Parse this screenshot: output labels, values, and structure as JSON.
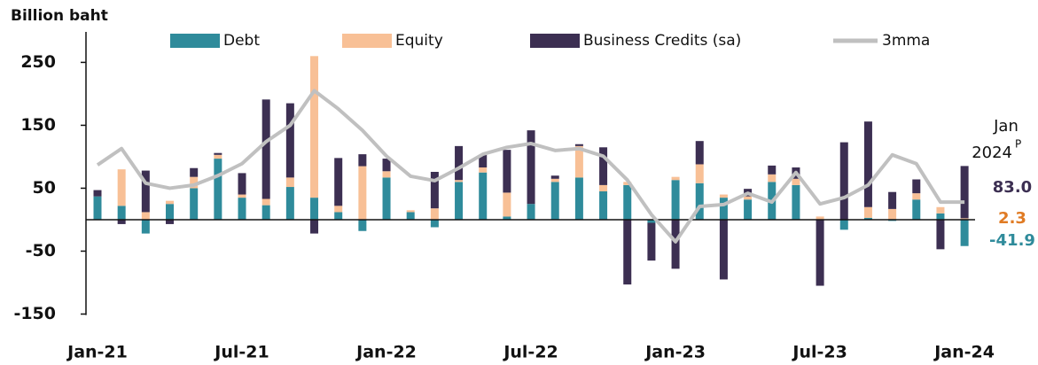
{
  "chart_data": {
    "type": "bar",
    "y_label": "Billion baht",
    "categories": [
      "Jan-21",
      null,
      null,
      null,
      null,
      null,
      "Jul-21",
      null,
      null,
      null,
      null,
      null,
      "Jan-22",
      null,
      null,
      null,
      null,
      null,
      "Jul-22",
      null,
      null,
      null,
      null,
      null,
      "Jan-23",
      null,
      null,
      null,
      null,
      null,
      "Jul-23",
      null,
      null,
      null,
      null,
      null,
      "Jan-24"
    ],
    "series": [
      {
        "name": "Debt",
        "color": "#2f8b9b",
        "values": [
          37,
          22,
          -22,
          25,
          50,
          97,
          35,
          23,
          52,
          35,
          12,
          -18,
          67,
          12,
          -12,
          60,
          75,
          5,
          25,
          60,
          67,
          45,
          55,
          -5,
          63,
          58,
          35,
          32,
          60,
          55,
          0,
          -16,
          3,
          -2,
          32,
          10,
          -41.9
        ],
        "value_labels": [
          null,
          null,
          null,
          null,
          null,
          null,
          null,
          null,
          null,
          null,
          null,
          null,
          null,
          null,
          null,
          null,
          null,
          null,
          null,
          null,
          null,
          null,
          null,
          null,
          null,
          null,
          null,
          null,
          null,
          null,
          null,
          null,
          null,
          null,
          null,
          null,
          "-41.9"
        ]
      },
      {
        "name": "Equity",
        "color": "#f8c096",
        "label_color": "#e07b24",
        "values": [
          0,
          58,
          12,
          5,
          18,
          6,
          5,
          10,
          15,
          225,
          10,
          85,
          10,
          3,
          18,
          3,
          8,
          38,
          0,
          5,
          50,
          10,
          5,
          0,
          5,
          30,
          5,
          5,
          12,
          10,
          5,
          0,
          17,
          17,
          10,
          10,
          2.3
        ],
        "value_labels": [
          null,
          null,
          null,
          null,
          null,
          null,
          null,
          null,
          null,
          null,
          null,
          null,
          null,
          null,
          null,
          null,
          null,
          null,
          null,
          null,
          null,
          null,
          null,
          null,
          null,
          null,
          null,
          null,
          null,
          null,
          null,
          null,
          null,
          null,
          null,
          null,
          "2.3"
        ]
      },
      {
        "name": "Business Credits (sa)",
        "color": "#3c2f52",
        "values": [
          10,
          -7,
          66,
          -7,
          14,
          3,
          34,
          158,
          118,
          -22,
          76,
          19,
          20,
          0,
          58,
          54,
          20,
          68,
          117,
          5,
          3,
          60,
          -103,
          -60,
          -78,
          37,
          -95,
          12,
          14,
          18,
          -105,
          123,
          136,
          27,
          22,
          -47,
          83.0
        ],
        "value_labels": [
          null,
          null,
          null,
          null,
          null,
          null,
          null,
          null,
          null,
          null,
          null,
          null,
          null,
          null,
          null,
          null,
          null,
          null,
          null,
          null,
          null,
          null,
          null,
          null,
          null,
          null,
          null,
          null,
          null,
          null,
          null,
          null,
          null,
          null,
          null,
          null,
          "83.0"
        ]
      },
      {
        "name": "3mma",
        "color": "#c0c0c0",
        "type": "line",
        "values": [
          87,
          113,
          58,
          50,
          55,
          70,
          89,
          124,
          150,
          205,
          176,
          142,
          101,
          69,
          62,
          82,
          104,
          115,
          121,
          110,
          113,
          101,
          63,
          8,
          -35,
          21,
          24,
          42,
          28,
          75,
          25,
          35,
          55,
          103,
          89,
          28,
          28
        ]
      }
    ],
    "annotations": [
      "Jan",
      "2024",
      "P"
    ],
    "ylim": [
      -160,
      290
    ],
    "yticks": [
      250,
      150,
      50,
      -50,
      -150
    ]
  }
}
